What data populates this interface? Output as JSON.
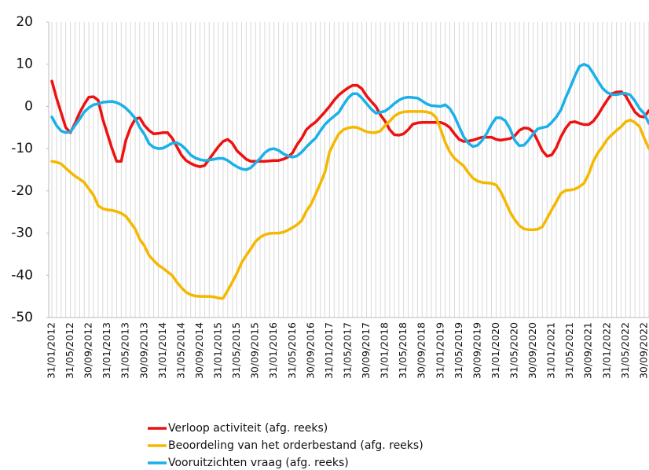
{
  "chart_data": {
    "type": "line",
    "categories": [
      "31/01/2012",
      null,
      null,
      null,
      "31/05/2012",
      null,
      null,
      null,
      "30/09/2012",
      null,
      null,
      null,
      "31/01/2013",
      null,
      null,
      null,
      "31/05/2013",
      null,
      null,
      null,
      "30/09/2013",
      null,
      null,
      null,
      "31/01/2014",
      null,
      null,
      null,
      "31/05/2014",
      null,
      null,
      null,
      "30/09/2014",
      null,
      null,
      null,
      "31/01/2015",
      null,
      null,
      null,
      "31/05/2015",
      null,
      null,
      null,
      "30/09/2015",
      null,
      null,
      null,
      "31/01/2016",
      null,
      null,
      null,
      "31/05/2016",
      null,
      null,
      null,
      "30/09/2016",
      null,
      null,
      null,
      "31/01/2017",
      null,
      null,
      null,
      "31/05/2017",
      null,
      null,
      null,
      "30/09/2017",
      null,
      null,
      null,
      "31/01/2018",
      null,
      null,
      null,
      "31/05/2018",
      null,
      null,
      null,
      "30/09/2018",
      null,
      null,
      null,
      "31/01/2019",
      null,
      null,
      null,
      "31/05/2019",
      null,
      null,
      null,
      "30/09/2019",
      null,
      null,
      null,
      "31/01/2020",
      null,
      null,
      null,
      "31/05/2020",
      null,
      null,
      null,
      "30/09/2020",
      null,
      null,
      null,
      "31/01/2021",
      null,
      null,
      null,
      "31/05/2021",
      null,
      null,
      null,
      "30/09/2021",
      null,
      null,
      null,
      "31/01/2022",
      null,
      null,
      null,
      "31/05/2022",
      null,
      null,
      null,
      "30/09/2022",
      null
    ],
    "series": [
      {
        "name": "Verloop activiteit (afg. reeks)",
        "color": "#ee1111",
        "values": [
          6,
          2,
          -1.5,
          -5,
          -6.2,
          -4,
          -1.5,
          0.5,
          2.2,
          2.3,
          1.5,
          -3,
          -6.5,
          -10,
          -13,
          -13,
          -8,
          -5,
          -3,
          -2.7,
          -4.5,
          -5.7,
          -6.5,
          -6.4,
          -6.2,
          -6.2,
          -7.5,
          -9.5,
          -11.5,
          -12.8,
          -13.5,
          -14,
          -14.3,
          -14,
          -12.5,
          -11,
          -9.5,
          -8.3,
          -7.8,
          -8.7,
          -10.5,
          -11.5,
          -12.5,
          -13,
          -13,
          -13,
          -13,
          -12.9,
          -12.8,
          -12.8,
          -12.5,
          -12,
          -11,
          -9,
          -7.5,
          -5.5,
          -4.5,
          -3.7,
          -2.5,
          -1.3,
          0,
          1.5,
          2.7,
          3.6,
          4.4,
          5,
          5,
          4.2,
          2.5,
          1.2,
          0,
          -2,
          -3.5,
          -5.5,
          -6.7,
          -6.8,
          -6.5,
          -5.5,
          -4.2,
          -3.9,
          -3.8,
          -3.8,
          -3.8,
          -3.8,
          -3.8,
          -4.2,
          -5,
          -6.5,
          -7.8,
          -8.3,
          -8.2,
          -8,
          -7.6,
          -7.3,
          -7.3,
          -7.3,
          -7.8,
          -8,
          -7.8,
          -7.6,
          -7,
          -5.7,
          -5.1,
          -5.2,
          -6,
          -8.2,
          -10.5,
          -11.8,
          -11.5,
          -9.8,
          -7.2,
          -5.2,
          -3.8,
          -3.6,
          -4,
          -4.3,
          -4.3,
          -3.5,
          -2,
          -0.2,
          1.5,
          3,
          3.4,
          3.5,
          2.5,
          0.5,
          -1.3,
          -2.3,
          -2.5,
          -1
        ]
      },
      {
        "name": "Beoordeling van het orderbestand (afg. reeks)",
        "color": "#f5b800",
        "values": [
          -13,
          -13.2,
          -13.6,
          -14.6,
          -15.6,
          -16.5,
          -17.2,
          -18,
          -19.5,
          -21,
          -23.5,
          -24.2,
          -24.5,
          -24.6,
          -24.9,
          -25.3,
          -26,
          -27.5,
          -29,
          -31.5,
          -33,
          -35.3,
          -36.5,
          -37.6,
          -38.3,
          -39.2,
          -40,
          -41.6,
          -42.9,
          -44,
          -44.6,
          -44.9,
          -45,
          -45,
          -45,
          -45.1,
          -45.4,
          -45.5,
          -43.6,
          -41.6,
          -39.5,
          -37,
          -35.3,
          -33.7,
          -32,
          -31,
          -30.4,
          -30.1,
          -30,
          -30,
          -29.8,
          -29.3,
          -28.7,
          -28,
          -27,
          -24.8,
          -23.2,
          -20.8,
          -18.3,
          -15.6,
          -10.8,
          -8.5,
          -6.5,
          -5.5,
          -5.1,
          -4.9,
          -5,
          -5.5,
          -6,
          -6.2,
          -6.2,
          -5.8,
          -4.5,
          -3.5,
          -2.3,
          -1.6,
          -1.3,
          -1.2,
          -1.2,
          -1.2,
          -1.2,
          -1.3,
          -1.6,
          -2.6,
          -5.4,
          -8.5,
          -10.8,
          -12.3,
          -13.2,
          -14.1,
          -15.7,
          -17,
          -17.7,
          -18,
          -18.1,
          -18.2,
          -18.6,
          -20.2,
          -22.5,
          -25,
          -26.8,
          -28.2,
          -29,
          -29.2,
          -29.2,
          -29.1,
          -28.5,
          -26.5,
          -24.5,
          -22.6,
          -20.6,
          -19.9,
          -19.8,
          -19.6,
          -19,
          -18.2,
          -16,
          -13,
          -11,
          -9.5,
          -7.8,
          -6.7,
          -5.7,
          -4.8,
          -3.6,
          -3.2,
          -3.8,
          -4.8,
          -7.5,
          -10
        ]
      },
      {
        "name": "Vooruitzichten vraag (afg. reeks)",
        "color": "#1ab0e8",
        "values": [
          -2.5,
          -4.5,
          -5.8,
          -6.2,
          -6,
          -4.5,
          -3,
          -1.3,
          -0.3,
          0.4,
          0.6,
          1,
          1.1,
          1.2,
          0.9,
          0.4,
          -0.4,
          -1.5,
          -2.8,
          -5,
          -6.6,
          -8.8,
          -9.7,
          -10,
          -9.9,
          -9.3,
          -8.7,
          -8.6,
          -9.2,
          -10.2,
          -11.5,
          -12.2,
          -12.6,
          -12.8,
          -12.7,
          -12.5,
          -12.3,
          -12.3,
          -12.8,
          -13.6,
          -14.3,
          -14.8,
          -15,
          -14.5,
          -13.4,
          -12.3,
          -11,
          -10.2,
          -10,
          -10.4,
          -11.2,
          -11.7,
          -12,
          -11.7,
          -10.8,
          -9.6,
          -8.5,
          -7.5,
          -5.8,
          -4.3,
          -3.2,
          -2.3,
          -1.4,
          0.4,
          2,
          3,
          3,
          2,
          0.7,
          -0.6,
          -1.6,
          -1.4,
          -1.1,
          -0.3,
          0.7,
          1.5,
          2,
          2.2,
          2.1,
          2,
          1.3,
          0.6,
          0.2,
          0.1,
          0,
          0.4,
          -0.5,
          -2.3,
          -4.8,
          -7.2,
          -8.7,
          -9.5,
          -9.2,
          -8,
          -6.3,
          -4.3,
          -2.7,
          -2.7,
          -3.4,
          -5.3,
          -8,
          -9.3,
          -9.2,
          -8,
          -6.5,
          -5.3,
          -5,
          -4.8,
          -3.8,
          -2.5,
          -0.8,
          2,
          4.5,
          7.2,
          9.5,
          10,
          9.5,
          7.8,
          6,
          4.3,
          3.3,
          2.8,
          2.8,
          3,
          3.1,
          2.7,
          1.3,
          -0.5,
          -1.7,
          -4
        ]
      }
    ],
    "ylim": [
      -50,
      20
    ],
    "yticks": [
      -50,
      -40,
      -30,
      -20,
      -10,
      0,
      10,
      20
    ],
    "grid": true
  }
}
